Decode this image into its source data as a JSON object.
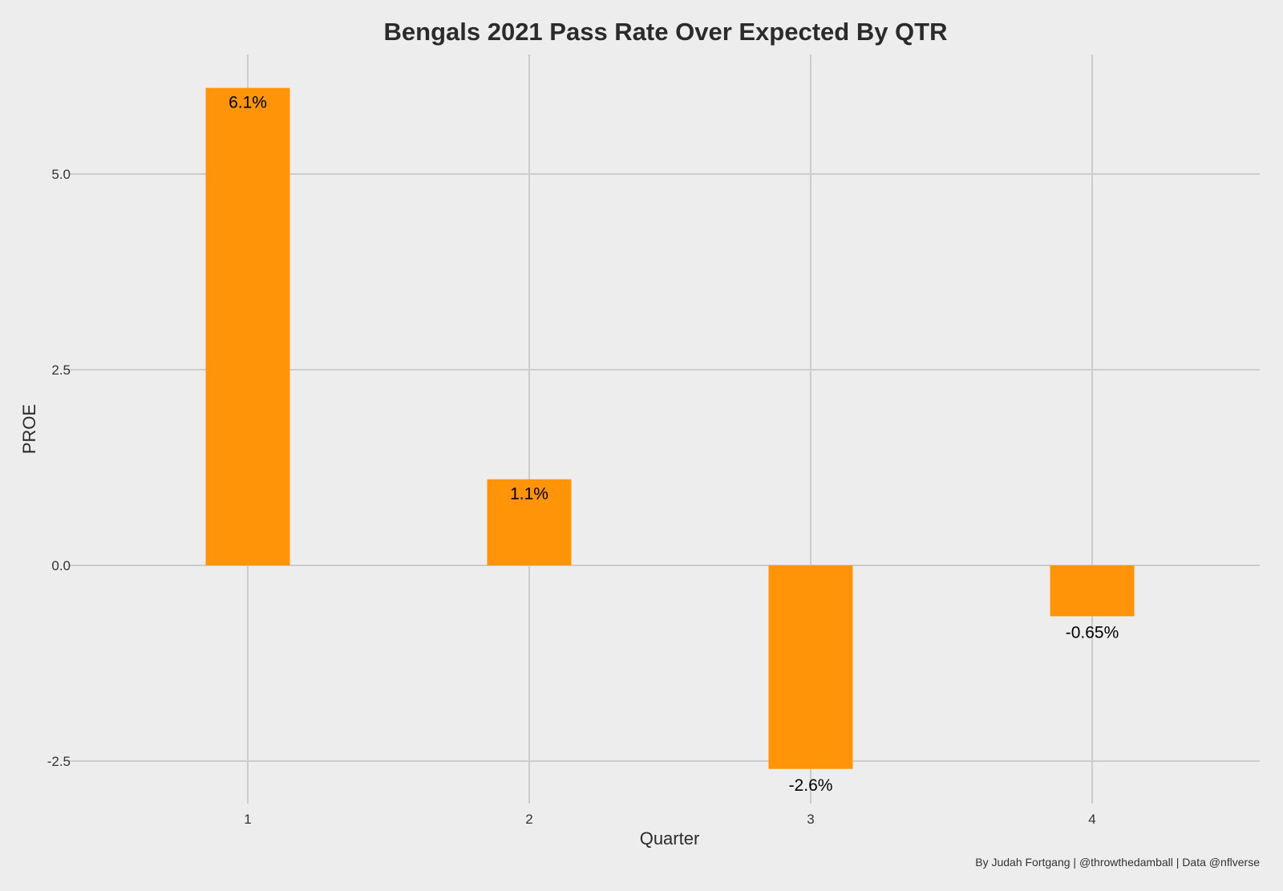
{
  "chart_data": {
    "type": "bar",
    "title": "Bengals 2021 Pass Rate Over Expected By QTR",
    "xlabel": "Quarter",
    "ylabel": "PROE",
    "categories": [
      "1",
      "2",
      "3",
      "4"
    ],
    "values": [
      6.1,
      1.1,
      -2.6,
      -0.65
    ],
    "data_labels": [
      "6.1%",
      "1.1%",
      "-2.6%",
      "-0.65%"
    ],
    "ylim": [
      -3.05,
      6.65
    ],
    "yticks": [
      -2.5,
      0.0,
      2.5,
      5.0
    ],
    "ytick_labels": [
      "-2.5",
      "0.0",
      "2.5",
      "5.0"
    ],
    "bar_color": "#ff9408",
    "grid": true,
    "legend": "none"
  },
  "caption": "By Judah Fortgang | @throwthedamball | Data @nflverse"
}
